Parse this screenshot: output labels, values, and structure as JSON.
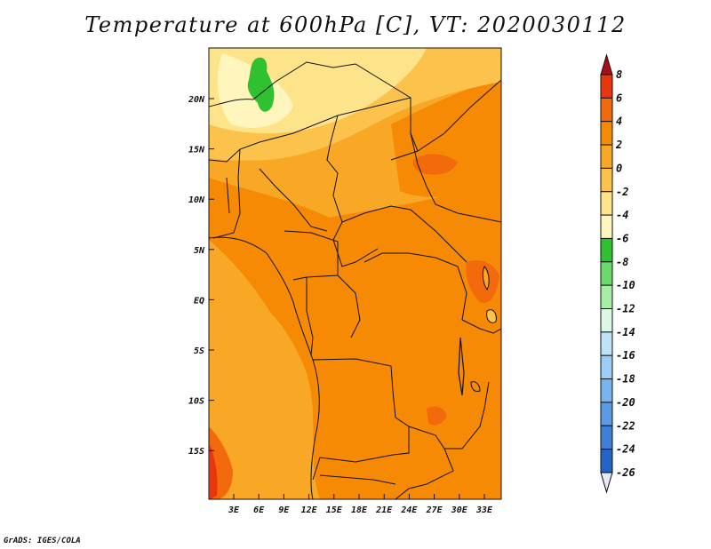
{
  "title": "Temperature at 600hPa [C], VT: 2020030112",
  "credit": "GrADS: IGES/COLA",
  "map": {
    "lat_labels": [
      "20N",
      "15N",
      "10N",
      "5N",
      "EQ",
      "5S",
      "10S",
      "15S"
    ],
    "lon_labels": [
      "3E",
      "6E",
      "9E",
      "12E",
      "15E",
      "18E",
      "21E",
      "24E",
      "27E",
      "30E",
      "33E"
    ]
  },
  "colorbar": {
    "labels": [
      "8",
      "6",
      "4",
      "2",
      "0",
      "-2",
      "-4",
      "-6",
      "-8",
      "-10",
      "-12",
      "-14",
      "-16",
      "-18",
      "-20",
      "-22",
      "-24",
      "-26"
    ],
    "colors": [
      "#a50f15",
      "#e8360e",
      "#f26a0c",
      "#f68a05",
      "#f9a825",
      "#fbc24c",
      "#fde48a",
      "#fff6bd",
      "#2fc12f",
      "#6bd96b",
      "#a6eea6",
      "#dcf7e6",
      "#bfe2f8",
      "#9ccdf5",
      "#78b5ee",
      "#5b9be5",
      "#3f7fd8",
      "#2463c7",
      "#1746a8",
      "#0b1f6e"
    ]
  }
}
